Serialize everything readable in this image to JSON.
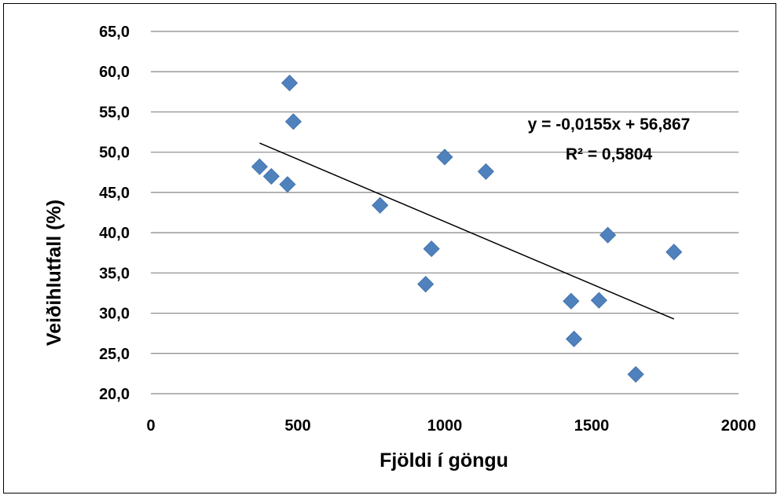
{
  "chart_data": {
    "type": "scatter",
    "xlabel": "Fjöldi í göngu",
    "ylabel": "Veiðihlutfall (%)",
    "xlim": [
      0,
      2000
    ],
    "ylim": [
      20,
      65
    ],
    "x_ticks": [
      "0",
      "500",
      "1000",
      "1500",
      "2000"
    ],
    "y_ticks": [
      "20,0",
      "25,0",
      "30,0",
      "35,0",
      "40,0",
      "45,0",
      "50,0",
      "55,0",
      "60,0",
      "65,0"
    ],
    "grid": "horizontal",
    "marker_color": "#4F81BD",
    "trendline_color": "#000000",
    "points": [
      {
        "x": 370,
        "y": 48.2
      },
      {
        "x": 410,
        "y": 47.0
      },
      {
        "x": 465,
        "y": 46.0
      },
      {
        "x": 472,
        "y": 58.6
      },
      {
        "x": 485,
        "y": 53.8
      },
      {
        "x": 780,
        "y": 43.4
      },
      {
        "x": 935,
        "y": 33.6
      },
      {
        "x": 955,
        "y": 38.0
      },
      {
        "x": 1000,
        "y": 49.4
      },
      {
        "x": 1140,
        "y": 47.6
      },
      {
        "x": 1430,
        "y": 31.5
      },
      {
        "x": 1440,
        "y": 26.8
      },
      {
        "x": 1525,
        "y": 31.6
      },
      {
        "x": 1555,
        "y": 39.7
      },
      {
        "x": 1650,
        "y": 22.4
      },
      {
        "x": 1780,
        "y": 37.6
      }
    ],
    "trendline": {
      "slope": -0.0155,
      "intercept": 56.867,
      "x_range": [
        370,
        1780
      ],
      "equation_label": "y = -0,0155x + 56,867",
      "r2_label": "R² = 0,5804"
    }
  }
}
